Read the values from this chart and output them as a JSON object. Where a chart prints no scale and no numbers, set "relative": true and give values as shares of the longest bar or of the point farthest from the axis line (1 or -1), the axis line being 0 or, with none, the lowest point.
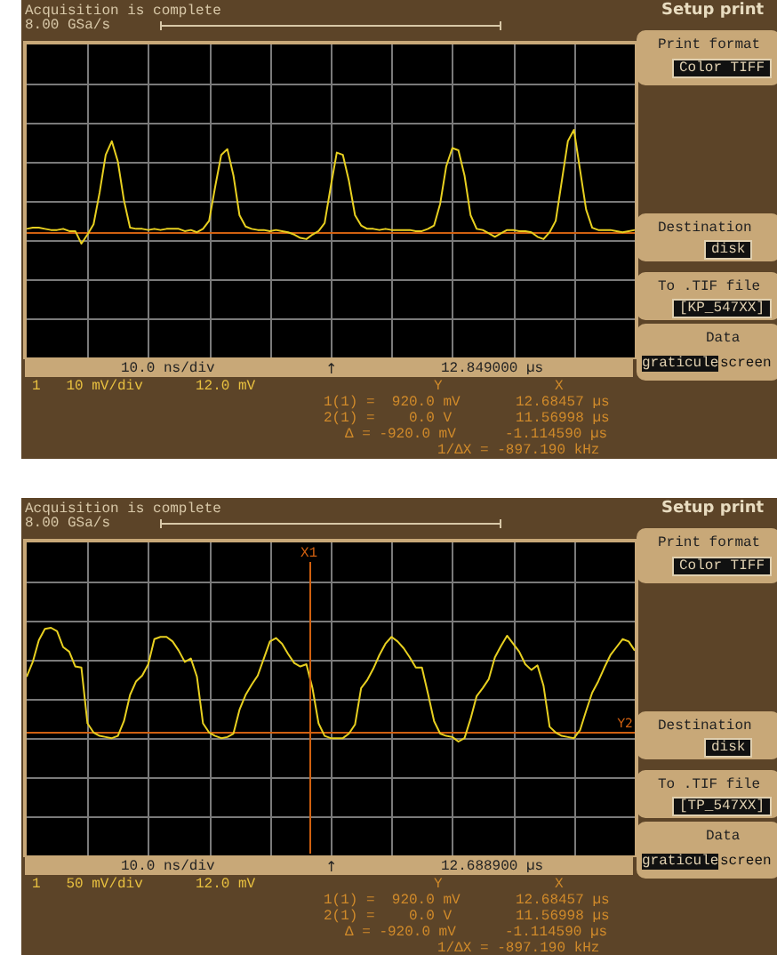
{
  "chart_data": [
    {
      "type": "line",
      "title": "Acquisition is complete",
      "subtitle": "8.00 GSa/s",
      "annotations": [
        "Setup print",
        "Print format",
        "Color TIFF",
        "Destination",
        "disk",
        "To .TIF file",
        "[KP_547XX]",
        "Data",
        "graticule",
        "screen",
        "10.0 ns/div",
        "12.849000 µs",
        "1   10 mV/div",
        "12.0 mV",
        "Y",
        "X",
        "1(1) =  920.0 mV",
        "12.68457 µs",
        "2(1) =    0.0 V",
        "11.56998 µs",
        "Δ = -920.0 mV",
        "-1.114590 µs",
        "1/ΔX = -897.190 kHz",
        "↑"
      ],
      "categories": [
        null,
        null,
        null,
        null,
        null,
        null,
        null,
        null,
        null,
        null,
        null,
        null,
        null,
        null,
        null,
        null,
        null,
        null,
        null,
        null,
        null,
        null,
        null,
        null,
        null,
        null,
        null,
        null,
        null,
        null,
        null,
        null,
        null,
        null,
        null,
        null,
        null,
        null,
        null,
        null,
        null,
        null,
        null,
        null,
        null,
        null,
        null,
        null,
        null,
        null,
        null,
        null,
        null,
        null,
        null,
        null,
        null,
        null,
        null,
        null,
        null,
        null,
        null,
        null,
        null,
        null,
        null,
        null,
        null,
        null,
        null,
        null,
        null,
        null,
        null,
        null,
        null,
        null,
        null,
        null,
        null,
        null,
        null,
        null,
        null,
        null,
        null,
        null,
        null,
        null,
        null,
        null,
        null,
        null,
        null,
        null,
        null,
        null,
        null,
        null,
        null
      ],
      "relative": true,
      "grid": true,
      "series": [
        {
          "color": "#e8d020",
          "values": [
            0.13,
            0.14,
            0.14,
            0.13,
            0.12,
            0.12,
            0.13,
            0.11,
            0.11,
            0.0,
            0.08,
            0.17,
            0.45,
            0.78,
            0.9,
            0.72,
            0.38,
            0.14,
            0.13,
            0.13,
            0.12,
            0.13,
            0.12,
            0.13,
            0.13,
            0.13,
            0.11,
            0.12,
            0.1,
            0.13,
            0.2,
            0.5,
            0.78,
            0.83,
            0.6,
            0.25,
            0.15,
            0.13,
            0.12,
            0.12,
            0.11,
            0.12,
            0.11,
            0.1,
            0.08,
            0.05,
            0.04,
            0.08,
            0.11,
            0.18,
            0.5,
            0.8,
            0.78,
            0.55,
            0.25,
            0.16,
            0.13,
            0.13,
            0.12,
            0.13,
            0.12,
            0.12,
            0.12,
            0.12,
            0.11,
            0.11,
            0.13,
            0.16,
            0.35,
            0.68,
            0.84,
            0.82,
            0.6,
            0.25,
            0.13,
            0.12,
            0.09,
            0.06,
            0.09,
            0.12,
            0.12,
            0.11,
            0.11,
            0.1,
            0.06,
            0.04,
            0.1,
            0.2,
            0.55,
            0.9,
            1.0,
            0.65,
            0.3,
            0.14,
            0.12,
            0.12,
            0.12,
            0.11,
            0.1,
            0.11,
            0.12
          ]
        }
      ],
      "ref_lines": [
        {
          "axis": "y",
          "value": 0.094,
          "color": "#d06010"
        }
      ]
    },
    {
      "type": "line",
      "title": "Acquisition is complete",
      "subtitle": "8.00 GSa/s",
      "annotations": [
        "Setup print",
        "Print format",
        "Color TIFF",
        "Destination",
        "disk",
        "To .TIF file",
        "[TP_547XX]",
        "Data",
        "graticule",
        "screen",
        "10.0 ns/div",
        "12.688900 µs",
        "1   50 mV/div",
        "12.0 mV",
        "Y",
        "X",
        "1(1) =  920.0 mV",
        "12.68457 µs",
        "2(1) =    0.0 V",
        "11.56998 µs",
        "Δ = -920.0 mV",
        "-1.114590 µs",
        "1/ΔX = -897.190 kHz",
        "↑",
        "X1"
      ],
      "categories": [
        null,
        null,
        null,
        null,
        null,
        null,
        null,
        null,
        null,
        null,
        null,
        null,
        null,
        null,
        null,
        null,
        null,
        null,
        null,
        null,
        null,
        null,
        null,
        null,
        null,
        null,
        null,
        null,
        null,
        null,
        null,
        null,
        null,
        null,
        null,
        null,
        null,
        null,
        null,
        null,
        null,
        null,
        null,
        null,
        null,
        null,
        null,
        null,
        null,
        null,
        null,
        null,
        null,
        null,
        null,
        null,
        null,
        null,
        null,
        null,
        null,
        null,
        null,
        null,
        null,
        null,
        null,
        null,
        null,
        null,
        null,
        null,
        null,
        null,
        null,
        null,
        null,
        null,
        null,
        null,
        null,
        null,
        null,
        null,
        null,
        null,
        null,
        null,
        null,
        null,
        null,
        null,
        null,
        null,
        null,
        null,
        null,
        null,
        null,
        null,
        null
      ],
      "relative": true,
      "grid": true,
      "series": [
        {
          "color": "#e8d020",
          "values": [
            0.57,
            0.7,
            0.89,
            0.99,
            1.0,
            0.97,
            0.83,
            0.79,
            0.66,
            0.65,
            0.16,
            0.08,
            0.05,
            0.04,
            0.03,
            0.05,
            0.18,
            0.41,
            0.53,
            0.58,
            0.68,
            0.9,
            0.92,
            0.92,
            0.88,
            0.8,
            0.7,
            0.73,
            0.57,
            0.16,
            0.08,
            0.05,
            0.03,
            0.04,
            0.07,
            0.28,
            0.41,
            0.5,
            0.58,
            0.73,
            0.88,
            0.91,
            0.86,
            0.77,
            0.69,
            0.66,
            0.68,
            0.47,
            0.16,
            0.05,
            0.03,
            0.03,
            0.03,
            0.07,
            0.15,
            0.47,
            0.54,
            0.64,
            0.76,
            0.86,
            0.92,
            0.88,
            0.82,
            0.74,
            0.65,
            0.65,
            0.42,
            0.18,
            0.07,
            0.05,
            0.04,
            0.0,
            0.03,
            0.2,
            0.4,
            0.47,
            0.55,
            0.74,
            0.84,
            0.93,
            0.86,
            0.79,
            0.68,
            0.63,
            0.67,
            0.49,
            0.13,
            0.08,
            0.05,
            0.04,
            0.03,
            0.1,
            0.27,
            0.43,
            0.53,
            0.65,
            0.76,
            0.83,
            0.9,
            0.88,
            0.8
          ]
        }
      ],
      "ref_lines": [
        {
          "axis": "y",
          "value": 0.078,
          "label": "Y2",
          "color": "#d06010"
        }
      ]
    }
  ]
}
